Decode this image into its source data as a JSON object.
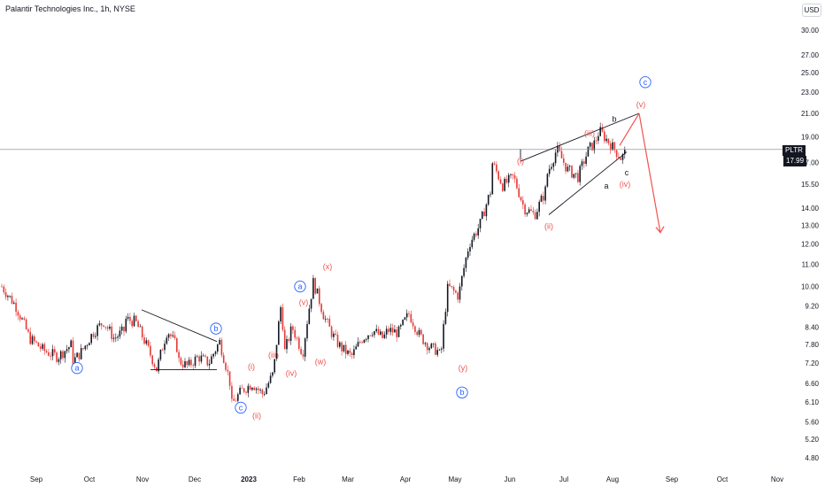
{
  "header": {
    "title": "Palantir Technologies Inc., 1h, NYSE",
    "currency": "USD"
  },
  "price_tag": {
    "symbol": "PLTR",
    "value": "17.99"
  },
  "colors": {
    "up": "#131722",
    "down": "#e53935",
    "wave_red": "#f05350",
    "wave_blue": "#2962ff",
    "line": "#131722",
    "grid_line": "#9598a1"
  },
  "chart_data": {
    "type": "line",
    "title": "Palantir Technologies Inc., 1h, NYSE",
    "y_scale": "log",
    "ylim": [
      4.6,
      33
    ],
    "y_ticks": [
      "30.00",
      "27.00",
      "25.00",
      "23.00",
      "21.00",
      "19.00",
      "17.00",
      "15.50",
      "14.00",
      "13.00",
      "12.00",
      "11.00",
      "10.00",
      "9.20",
      "8.40",
      "7.80",
      "7.20",
      "6.60",
      "6.10",
      "5.60",
      "5.20",
      "4.80"
    ],
    "x_ticks": [
      "Sep",
      "Oct",
      "Nov",
      "Dec",
      "2023",
      "Feb",
      "Mar",
      "Apr",
      "May",
      "Jun",
      "Jul",
      "Aug",
      "Sep",
      "Oct",
      "Nov"
    ],
    "last_price": 17.99,
    "series": [
      {
        "values": [
          [
            "Sep",
            10.0
          ],
          [
            "Sep",
            9.2
          ],
          [
            "Sep",
            8.0
          ],
          [
            "Sep",
            7.6
          ],
          [
            "Sep",
            7.4
          ],
          [
            "Sep",
            7.8
          ],
          [
            "Oct",
            7.2
          ],
          [
            "Oct",
            7.6
          ],
          [
            "Oct",
            8.2
          ],
          [
            "Oct",
            8.6
          ],
          [
            "Oct",
            8.0
          ],
          [
            "Oct",
            8.3
          ],
          [
            "Nov",
            8.7
          ],
          [
            "Nov",
            8.6
          ],
          [
            "Nov",
            7.8
          ],
          [
            "Nov",
            7.0
          ],
          [
            "Nov",
            8.3
          ],
          [
            "Nov",
            7.3
          ],
          [
            "Dec",
            7.7
          ],
          [
            "Dec",
            7.1
          ],
          [
            "Dec",
            7.4
          ],
          [
            "Dec",
            7.2
          ],
          [
            "Dec",
            7.9
          ],
          [
            "Dec",
            6.6
          ],
          [
            "2023",
            6.0
          ],
          [
            "2023",
            6.4
          ],
          [
            "2023",
            6.6
          ],
          [
            "2023",
            6.3
          ],
          [
            "2023",
            6.9
          ],
          [
            "2023",
            7.5
          ],
          [
            "Feb",
            9.4
          ],
          [
            "Feb",
            8.4
          ],
          [
            "Feb",
            7.5
          ],
          [
            "Feb",
            10.2
          ],
          [
            "Feb",
            8.8
          ],
          [
            "Feb",
            8.0
          ],
          [
            "Mar",
            8.3
          ],
          [
            "Mar",
            7.7
          ],
          [
            "Mar",
            7.4
          ],
          [
            "Mar",
            8.0
          ],
          [
            "Mar",
            8.3
          ],
          [
            "Mar",
            8.0
          ],
          [
            "Apr",
            8.3
          ],
          [
            "Apr",
            8.2
          ],
          [
            "Apr",
            8.9
          ],
          [
            "Apr",
            8.1
          ],
          [
            "Apr",
            7.7
          ],
          [
            "Apr",
            7.4
          ],
          [
            "May",
            7.6
          ],
          [
            "May",
            10.0
          ],
          [
            "May",
            9.6
          ],
          [
            "May",
            12.0
          ],
          [
            "May",
            13.0
          ],
          [
            "May",
            15.0
          ],
          [
            "Jun",
            17.0
          ],
          [
            "Jun",
            15.4
          ],
          [
            "Jun",
            16.0
          ],
          [
            "Jun",
            14.0
          ],
          [
            "Jun",
            13.6
          ],
          [
            "Jun",
            15.0
          ],
          [
            "Jul",
            16.0
          ],
          [
            "Jul",
            18.0
          ],
          [
            "Jul",
            16.5
          ],
          [
            "Jul",
            16.0
          ],
          [
            "Jul",
            18.0
          ],
          [
            "Jul",
            19.5
          ],
          [
            "Aug",
            18.5
          ],
          [
            "Aug",
            17.3
          ],
          [
            "Aug",
            17.99
          ]
        ]
      }
    ],
    "annotations": [
      {
        "text": "a",
        "style": "circled"
      },
      {
        "text": "b",
        "style": "circled"
      },
      {
        "text": "c",
        "style": "circled"
      },
      {
        "text": "(i)",
        "style": "red"
      },
      {
        "text": "(ii)",
        "style": "red"
      },
      {
        "text": "(iii)",
        "style": "red"
      },
      {
        "text": "(iv)",
        "style": "red"
      },
      {
        "text": "(v)",
        "style": "red"
      },
      {
        "text": "a",
        "style": "circled"
      },
      {
        "text": "(x)",
        "style": "red"
      },
      {
        "text": "(w)",
        "style": "red"
      },
      {
        "text": "(y)",
        "style": "red"
      },
      {
        "text": "b",
        "style": "circled"
      },
      {
        "text": "(i)",
        "style": "red"
      },
      {
        "text": "(ii)",
        "style": "red"
      },
      {
        "text": "(iii)",
        "style": "red"
      },
      {
        "text": "(iv)",
        "style": "red"
      },
      {
        "text": "(v)",
        "style": "red"
      },
      {
        "text": "c",
        "style": "circled"
      },
      {
        "text": "a",
        "style": "plain"
      },
      {
        "text": "b",
        "style": "plain"
      },
      {
        "text": "c",
        "style": "plain"
      }
    ]
  }
}
